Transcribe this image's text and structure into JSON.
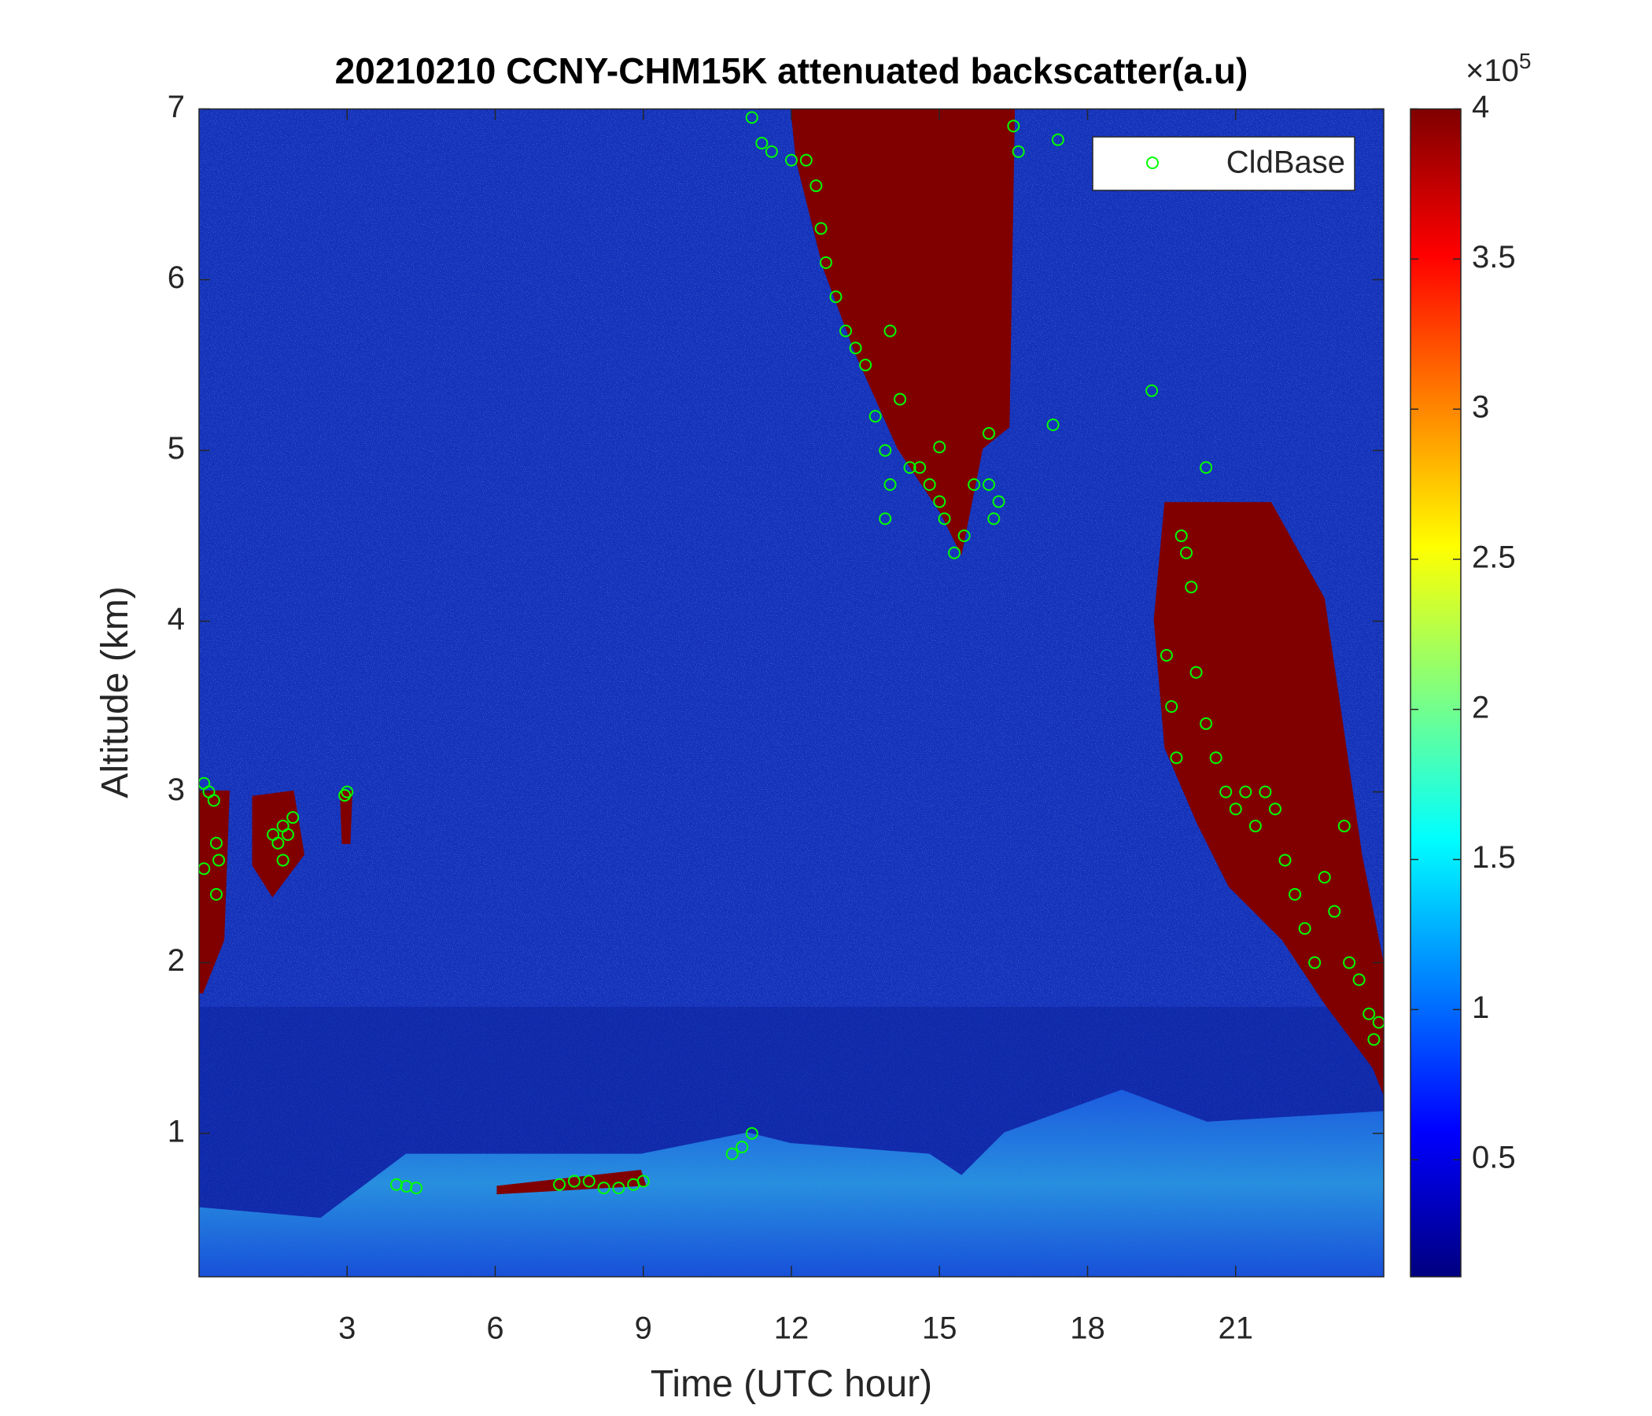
{
  "chart_data": {
    "type": "scatter",
    "title": "20210210 CCNY-CHM15K attenuated backscatter(a.u)",
    "x_label": "Time (UTC hour)",
    "y_label": "Altitude (km)",
    "xlim": [
      0,
      24
    ],
    "xticks": [
      3,
      6,
      9,
      12,
      15,
      18,
      21
    ],
    "ylim": [
      0.16,
      7
    ],
    "yticks": [
      1,
      2,
      3,
      4,
      5,
      6,
      7
    ],
    "legend": "upper right",
    "colorbar": {
      "colormap": "jet",
      "clim": [
        0.11,
        4
      ],
      "ticks": [
        0.5,
        1,
        1.5,
        2,
        2.5,
        3,
        3.5,
        4
      ],
      "multiplier": {
        "base": "×10",
        "exponent": "5"
      }
    },
    "series": [
      {
        "name": "CldBase",
        "color": "#00ff00",
        "x": [
          0.1,
          0.2,
          0.3,
          0.35,
          0.4,
          0.1,
          0.35,
          1.5,
          1.6,
          1.7,
          1.8,
          1.9,
          1.7,
          3.0,
          2.95,
          4.0,
          4.2,
          4.4,
          7.3,
          7.6,
          7.9,
          8.2,
          8.5,
          8.8,
          9.0,
          10.8,
          11.0,
          11.2,
          11.2,
          11.4,
          11.6,
          12.0,
          12.3,
          12.5,
          12.6,
          12.7,
          12.9,
          13.1,
          13.3,
          13.5,
          13.7,
          13.9,
          14.0,
          13.9,
          14.0,
          14.2,
          14.4,
          14.6,
          14.8,
          15.0,
          15.1,
          15.3,
          15.5,
          15.7,
          16.0,
          16.1,
          16.2,
          16.0,
          15.0,
          16.5,
          16.6,
          17.4,
          17.3,
          19.3,
          19.6,
          19.7,
          19.8,
          20.0,
          20.1,
          20.2,
          20.4,
          20.6,
          20.8,
          21.0,
          21.2,
          21.4,
          21.6,
          21.8,
          22.0,
          22.2,
          22.4,
          22.6,
          22.8,
          23.0,
          23.2,
          23.3,
          23.5,
          23.7,
          23.8,
          23.9,
          20.4,
          19.9
        ],
        "y": [
          3.05,
          3.0,
          2.95,
          2.7,
          2.6,
          2.55,
          2.4,
          2.75,
          2.7,
          2.8,
          2.75,
          2.85,
          2.6,
          3.0,
          2.98,
          0.7,
          0.69,
          0.68,
          0.7,
          0.72,
          0.72,
          0.68,
          0.68,
          0.7,
          0.72,
          0.88,
          0.92,
          1.0,
          6.95,
          6.8,
          6.75,
          6.7,
          6.7,
          6.55,
          6.3,
          6.1,
          5.9,
          5.7,
          5.6,
          5.5,
          5.2,
          5.0,
          4.8,
          4.6,
          5.7,
          5.3,
          4.9,
          4.9,
          4.8,
          4.7,
          4.6,
          4.4,
          4.5,
          4.8,
          4.8,
          4.6,
          4.7,
          5.1,
          5.02,
          6.9,
          6.75,
          6.82,
          5.15,
          5.35,
          3.8,
          3.5,
          3.2,
          4.4,
          4.2,
          3.7,
          3.4,
          3.2,
          3.0,
          2.9,
          3.0,
          2.8,
          3.0,
          2.9,
          2.6,
          2.4,
          2.2,
          2.0,
          2.5,
          2.3,
          2.8,
          2.0,
          1.9,
          1.7,
          1.55,
          1.65,
          4.9,
          4.5
        ]
      }
    ]
  }
}
